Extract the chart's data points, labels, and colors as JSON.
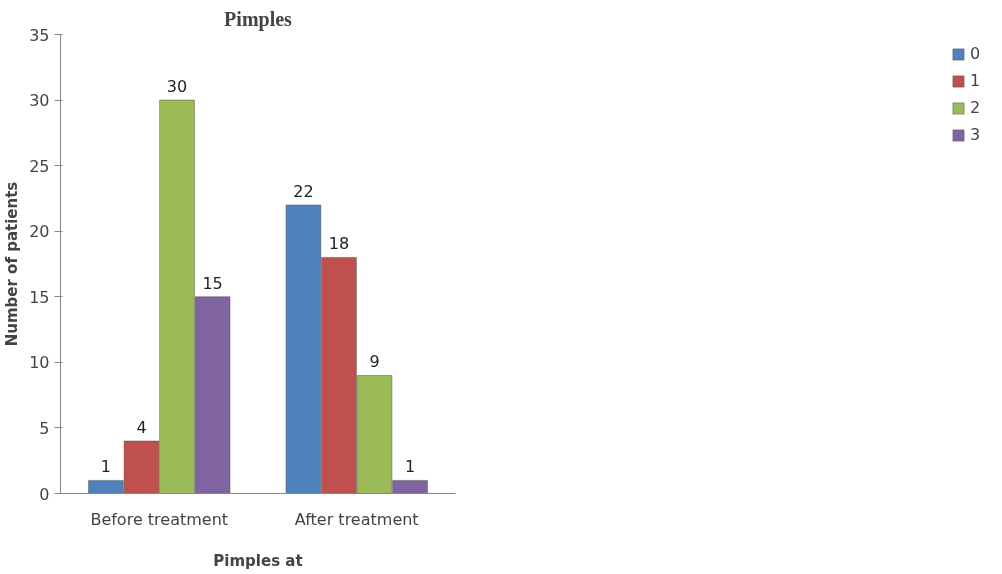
{
  "chart_data": {
    "type": "bar",
    "title": "Pimples",
    "xlabel": "Pimples at",
    "ylabel": "Number of patients",
    "categories": [
      "Before treatment",
      "After treatment"
    ],
    "series": [
      {
        "name": "0",
        "color": "#4f81bd",
        "values": [
          1,
          22
        ]
      },
      {
        "name": "1",
        "color": "#c0504d",
        "values": [
          4,
          18
        ]
      },
      {
        "name": "2",
        "color": "#9bbb59",
        "values": [
          30,
          9
        ]
      },
      {
        "name": "3",
        "color": "#8064a2",
        "values": [
          15,
          1
        ]
      }
    ],
    "ylim": [
      0,
      35
    ],
    "yticks": [
      0,
      5,
      10,
      15,
      20,
      25,
      30,
      35
    ],
    "grid": false,
    "legend": "right",
    "data_labels": true
  }
}
